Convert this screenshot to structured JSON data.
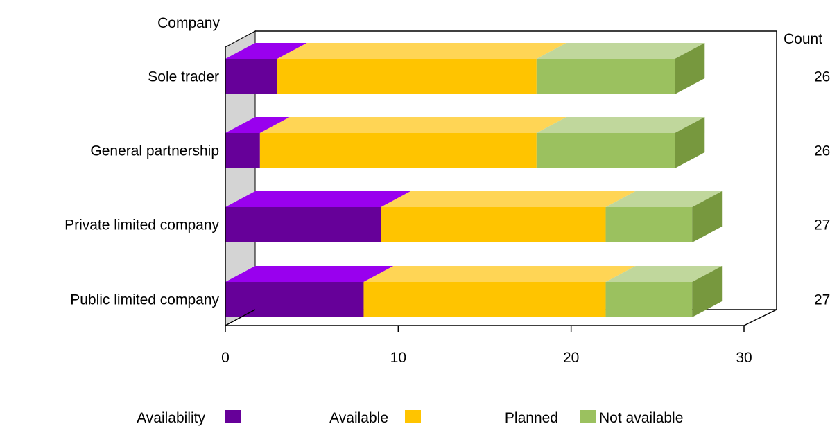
{
  "chart_data": {
    "type": "bar",
    "orientation": "horizontal",
    "stacked": true,
    "style": "3d",
    "y_axis_title": "Company",
    "right_axis_title": "Count",
    "categories": [
      "Sole trader",
      "General partnership",
      "Private limited company",
      "Public limited company"
    ],
    "series": [
      {
        "name": "Available",
        "values": [
          3,
          2,
          9,
          8
        ]
      },
      {
        "name": "Planned",
        "values": [
          15,
          16,
          13,
          14
        ]
      },
      {
        "name": "Not available",
        "values": [
          8,
          8,
          5,
          5
        ]
      }
    ],
    "counts": [
      26,
      26,
      27,
      27
    ],
    "xlim": [
      0,
      30
    ],
    "x_ticks": [
      0,
      10,
      20,
      30
    ],
    "grid": false,
    "legend": {
      "title": "Availability",
      "placement": "bottom"
    },
    "colors": {
      "Available": {
        "front": "#660099",
        "top": "#9900EE"
      },
      "Planned": {
        "front": "#FFC400",
        "top": "#FFD555"
      },
      "Not available": {
        "front": "#9BC15F",
        "top": "#C0D79C",
        "side": "#77983E"
      },
      "backwall": "#D4D4D4"
    }
  }
}
